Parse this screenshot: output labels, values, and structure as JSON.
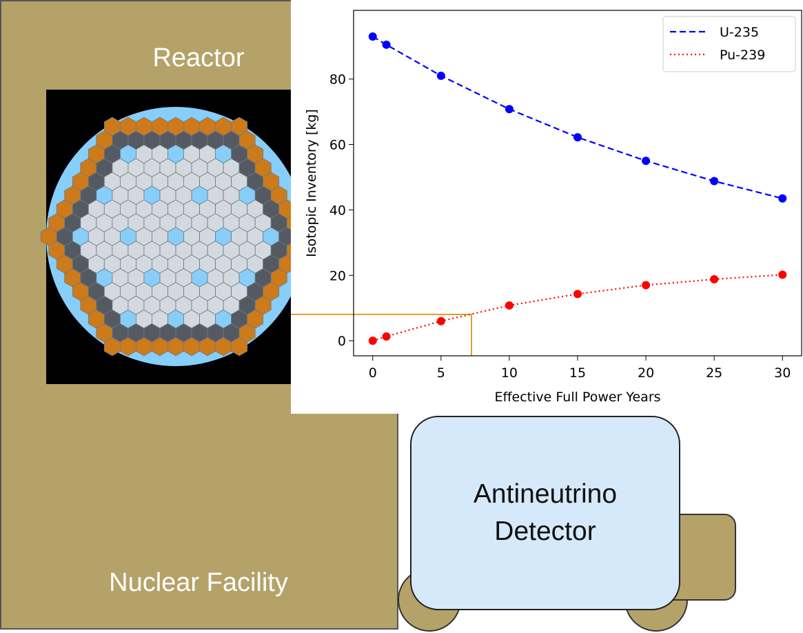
{
  "facility": {
    "label": "Nuclear Facility",
    "reactor_label": "Reactor"
  },
  "detector": {
    "label_lines": [
      "Antineutrino",
      "Detector"
    ]
  },
  "chart_data": {
    "type": "line",
    "x": [
      0,
      1,
      5,
      10,
      15,
      20,
      25,
      30
    ],
    "series": [
      {
        "name": "U-235",
        "color": "#0000ff",
        "style": "dashed",
        "values": [
          93,
          90.5,
          81,
          70.8,
          62.2,
          55,
          48.8,
          43.5
        ]
      },
      {
        "name": "Pu-239",
        "color": "#ff0000",
        "style": "dotted",
        "values": [
          0,
          1.3,
          6,
          10.8,
          14.3,
          17,
          18.8,
          20.2
        ]
      }
    ],
    "xlabel": "Effective Full Power Years",
    "ylabel": "Isotopic Inventory [kg]",
    "xlim": [
      -1.4,
      31.4
    ],
    "ylim": [
      -4.6,
      101
    ],
    "xticks": [
      0,
      5,
      10,
      15,
      20,
      25,
      30
    ],
    "yticks": [
      0,
      20,
      40,
      60,
      80
    ],
    "legend": "upper-right"
  }
}
